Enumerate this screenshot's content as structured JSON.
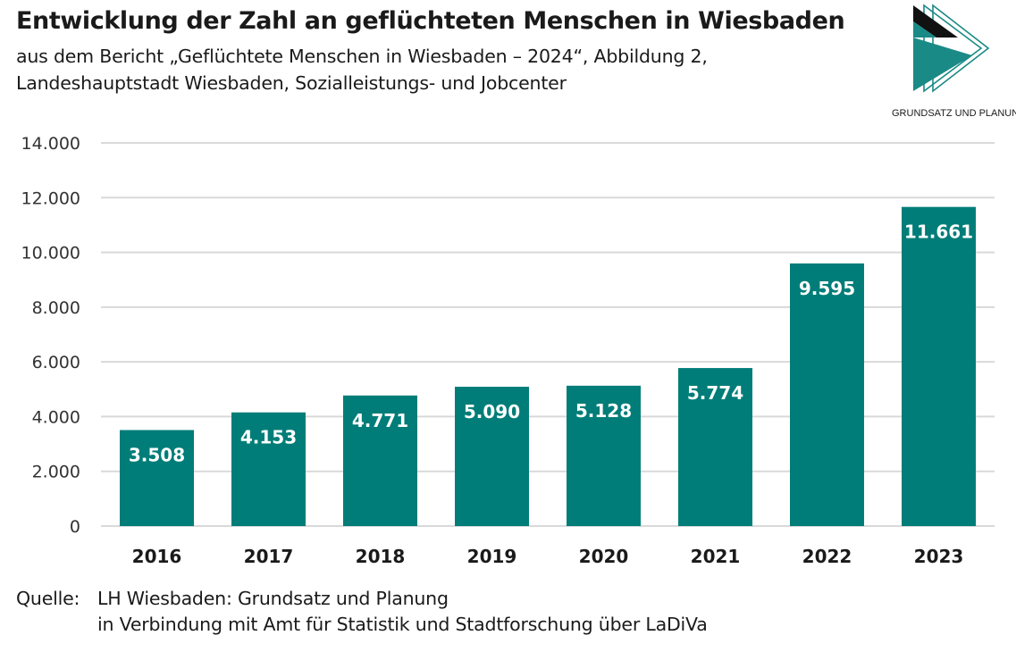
{
  "header": {
    "title": "Entwicklung der Zahl an geflüchteten Menschen in Wiesbaden",
    "subtitle_line1": "aus dem Bericht „Geflüchtete Menschen in Wiesbaden – 2024“, Abbildung 2,",
    "subtitle_line2": "Landeshauptstadt Wiesbaden, Sozialleistungs- und Jobcenter"
  },
  "logo": {
    "text": "GRUNDSATZ UND PLANUNG"
  },
  "colors": {
    "bar": "#007d78",
    "grid": "#d9d9d9",
    "bar_label": "#ffffff",
    "logo_teal": "#1a8a86",
    "logo_dark": "#111111"
  },
  "chart_data": {
    "type": "bar",
    "title": "Entwicklung der Zahl an geflüchteten Menschen in Wiesbaden",
    "xlabel": "",
    "ylabel": "",
    "categories": [
      "2016",
      "2017",
      "2018",
      "2019",
      "2020",
      "2021",
      "2022",
      "2023"
    ],
    "values": [
      3508,
      4153,
      4771,
      5090,
      5128,
      5774,
      9595,
      11661
    ],
    "value_labels": [
      "3.508",
      "4.153",
      "4.771",
      "5.090",
      "5.128",
      "5.774",
      "9.595",
      "11.661"
    ],
    "ylim": [
      0,
      14000
    ],
    "yticks": [
      0,
      2000,
      4000,
      6000,
      8000,
      10000,
      12000,
      14000
    ],
    "ytick_labels": [
      "0",
      "2.000",
      "4.000",
      "6.000",
      "8.000",
      "10.000",
      "12.000",
      "14.000"
    ],
    "grid": true,
    "legend": "none"
  },
  "source": {
    "label": "Quelle:",
    "line1": "LH Wiesbaden: Grundsatz und Planung",
    "line2": "in Verbindung mit Amt für Statistik und Stadtforschung über LaDiVa"
  }
}
